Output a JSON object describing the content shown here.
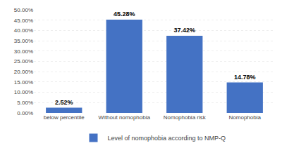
{
  "chart_data": {
    "type": "bar",
    "categories": [
      "below percentile",
      "Without nomophobia",
      "Nomophobia risk",
      "Nomophobia"
    ],
    "series": [
      {
        "name": "Level of nomophobia according to NMP-Q",
        "color": "#4472C4",
        "values": [
          2.52,
          45.28,
          37.42,
          14.78
        ],
        "value_labels": [
          "2.52%",
          "45.28%",
          "37.42%",
          "14.78%"
        ]
      }
    ],
    "data_labels": true,
    "ylim": [
      0,
      50
    ],
    "yticks": [
      {
        "value": 0,
        "label": "0.00%"
      },
      {
        "value": 5,
        "label": "5.00%"
      },
      {
        "value": 10,
        "label": "10.00%"
      },
      {
        "value": 15,
        "label": "15.00%"
      },
      {
        "value": 20,
        "label": "20.00%"
      },
      {
        "value": 25,
        "label": "25.00%"
      },
      {
        "value": 30,
        "label": "30.00%"
      },
      {
        "value": 35,
        "label": "35.00%"
      },
      {
        "value": 40,
        "label": "40.00%"
      },
      {
        "value": 45,
        "label": "45.00%"
      },
      {
        "value": 50,
        "label": "50.00%"
      }
    ],
    "grid": true,
    "legend": "bottom"
  }
}
